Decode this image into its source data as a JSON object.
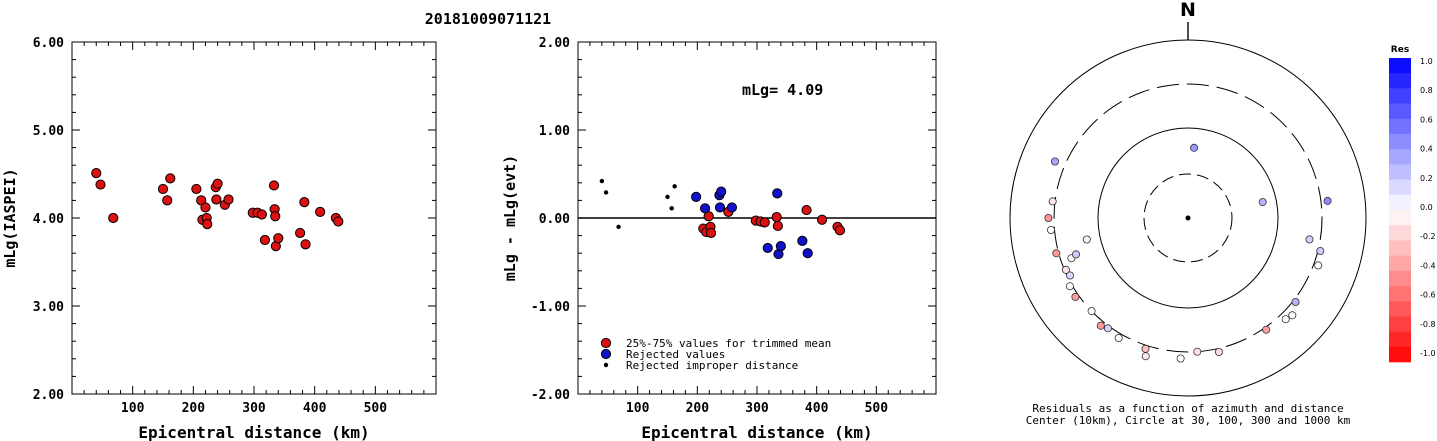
{
  "title": "20181009071121",
  "chart_data": [
    {
      "type": "scatter",
      "xlabel": "Epicentral distance (km)",
      "ylabel": "mLg(IASPEI)",
      "xlim": [
        0,
        600
      ],
      "ylim": [
        2.0,
        6.0
      ],
      "x_ticks": [
        "100",
        "200",
        "300",
        "400",
        "500"
      ],
      "y_ticks": [
        "2.00",
        "3.00",
        "4.00",
        "5.00",
        "6.00"
      ],
      "series": [
        {
          "color": "#dd1111",
          "points": [
            [
              40,
              4.51
            ],
            [
              47,
              4.38
            ],
            [
              68,
              4.0
            ],
            [
              150,
              4.33
            ],
            [
              157,
              4.2
            ],
            [
              162,
              4.45
            ],
            [
              205,
              4.33
            ],
            [
              213,
              4.2
            ],
            [
              215,
              3.98
            ],
            [
              220,
              4.12
            ],
            [
              222,
              4.0
            ],
            [
              223,
              3.93
            ],
            [
              237,
              4.35
            ],
            [
              238,
              4.21
            ],
            [
              240,
              4.39
            ],
            [
              252,
              4.15
            ],
            [
              258,
              4.21
            ],
            [
              298,
              4.06
            ],
            [
              306,
              4.06
            ],
            [
              313,
              4.04
            ],
            [
              318,
              3.75
            ],
            [
              333,
              4.37
            ],
            [
              334,
              4.1
            ],
            [
              335,
              4.02
            ],
            [
              336,
              3.68
            ],
            [
              340,
              3.77
            ],
            [
              376,
              3.83
            ],
            [
              383,
              4.18
            ],
            [
              385,
              3.7
            ],
            [
              409,
              4.07
            ],
            [
              435,
              4.0
            ],
            [
              439,
              3.96
            ]
          ]
        }
      ]
    },
    {
      "type": "scatter",
      "xlabel": "Epicentral distance (km)",
      "ylabel": "mLg - mLg(evt)",
      "xlim": [
        0,
        600
      ],
      "ylim": [
        -2.0,
        2.0
      ],
      "x_ticks": [
        "100",
        "200",
        "300",
        "400",
        "500"
      ],
      "y_ticks": [
        "-2.00",
        "-1.00",
        "0.00",
        "1.00",
        "2.00"
      ],
      "annotation": "mLg= 4.09",
      "legend_position": "bottom",
      "series": [
        {
          "name": "25%-75% values for trimmed mean",
          "color": "#dd1111",
          "points": [
            [
              210,
              -0.12
            ],
            [
              215,
              -0.16
            ],
            [
              219,
              0.02
            ],
            [
              222,
              -0.1
            ],
            [
              223,
              -0.17
            ],
            [
              252,
              0.07
            ],
            [
              298,
              -0.03
            ],
            [
              306,
              -0.04
            ],
            [
              313,
              -0.05
            ],
            [
              333,
              0.01
            ],
            [
              335,
              -0.09
            ],
            [
              383,
              0.09
            ],
            [
              409,
              -0.02
            ],
            [
              435,
              -0.1
            ],
            [
              439,
              -0.14
            ]
          ]
        },
        {
          "name": "Rejected values",
          "color": "#1111cc",
          "points": [
            [
              198,
              0.24
            ],
            [
              213,
              0.11
            ],
            [
              237,
              0.26
            ],
            [
              238,
              0.12
            ],
            [
              240,
              0.3
            ],
            [
              258,
              0.12
            ],
            [
              318,
              -0.34
            ],
            [
              334,
              0.28
            ],
            [
              336,
              -0.41
            ],
            [
              340,
              -0.32
            ],
            [
              376,
              -0.26
            ],
            [
              385,
              -0.4
            ]
          ]
        },
        {
          "name": "Rejected improper distance",
          "color": "#000000",
          "points": [
            [
              40,
              0.42
            ],
            [
              47,
              0.29
            ],
            [
              68,
              -0.1
            ],
            [
              150,
              0.24
            ],
            [
              157,
              0.11
            ],
            [
              162,
              0.36
            ]
          ]
        }
      ]
    }
  ],
  "polar": {
    "north_label": "N",
    "caption_line1": "Residuals as a function of azimuth and distance",
    "caption_line2": "Center (10km), Circle at 30, 100, 300 and 1000 km",
    "colorbar_title": "Res",
    "colorbar_ticks": [
      "1.0",
      "0.8",
      "0.6",
      "0.4",
      "0.2",
      "0.0",
      "-0.2",
      "-0.4",
      "-0.6",
      "-0.8",
      "-1.0"
    ],
    "stations": [
      {
        "az": 5,
        "dist": 60,
        "res": 0.4
      },
      {
        "az": 78,
        "dist": 70,
        "res": 0.3
      },
      {
        "az": 83,
        "dist": 360,
        "res": 0.45
      },
      {
        "az": 104,
        "dist": 320,
        "res": 0.2
      },
      {
        "az": 110,
        "dist": 340,
        "res": 0.0
      },
      {
        "az": 100,
        "dist": 230,
        "res": 0.18
      },
      {
        "az": 128,
        "dist": 320,
        "res": 0.3
      },
      {
        "az": 133,
        "dist": 380,
        "res": -0.02
      },
      {
        "az": 136,
        "dist": 360,
        "res": 0.0
      },
      {
        "az": 145,
        "dist": 320,
        "res": -0.38
      },
      {
        "az": 167,
        "dist": 330,
        "res": -0.15
      },
      {
        "az": 176,
        "dist": 300,
        "res": -0.12
      },
      {
        "az": 183,
        "dist": 360,
        "res": 0.0
      },
      {
        "az": 198,
        "dist": 330,
        "res": -0.25
      },
      {
        "az": 197,
        "dist": 400,
        "res": -0.08
      },
      {
        "az": 210,
        "dist": 340,
        "res": -0.03
      },
      {
        "az": 216,
        "dist": 320,
        "res": 0.18
      },
      {
        "az": 219,
        "dist": 340,
        "res": -0.4
      },
      {
        "az": 226,
        "dist": 300,
        "res": 0.0
      },
      {
        "az": 235,
        "dist": 330,
        "res": -0.38
      },
      {
        "az": 240,
        "dist": 320,
        "res": 0.0
      },
      {
        "az": 244,
        "dist": 280,
        "res": 0.15
      },
      {
        "az": 247,
        "dist": 290,
        "res": -0.12
      },
      {
        "az": 251,
        "dist": 230,
        "res": -0.04
      },
      {
        "az": 255,
        "dist": 320,
        "res": -0.4
      },
      {
        "az": 252,
        "dist": 200,
        "res": 0.2
      },
      {
        "az": 258,
        "dist": 140,
        "res": -0.06
      },
      {
        "az": 265,
        "dist": 330,
        "res": 0.0
      },
      {
        "az": 270,
        "dist": 350,
        "res": -0.42
      },
      {
        "az": 277,
        "dist": 320,
        "res": -0.1
      },
      {
        "az": 293,
        "dist": 400,
        "res": 0.35
      }
    ]
  }
}
